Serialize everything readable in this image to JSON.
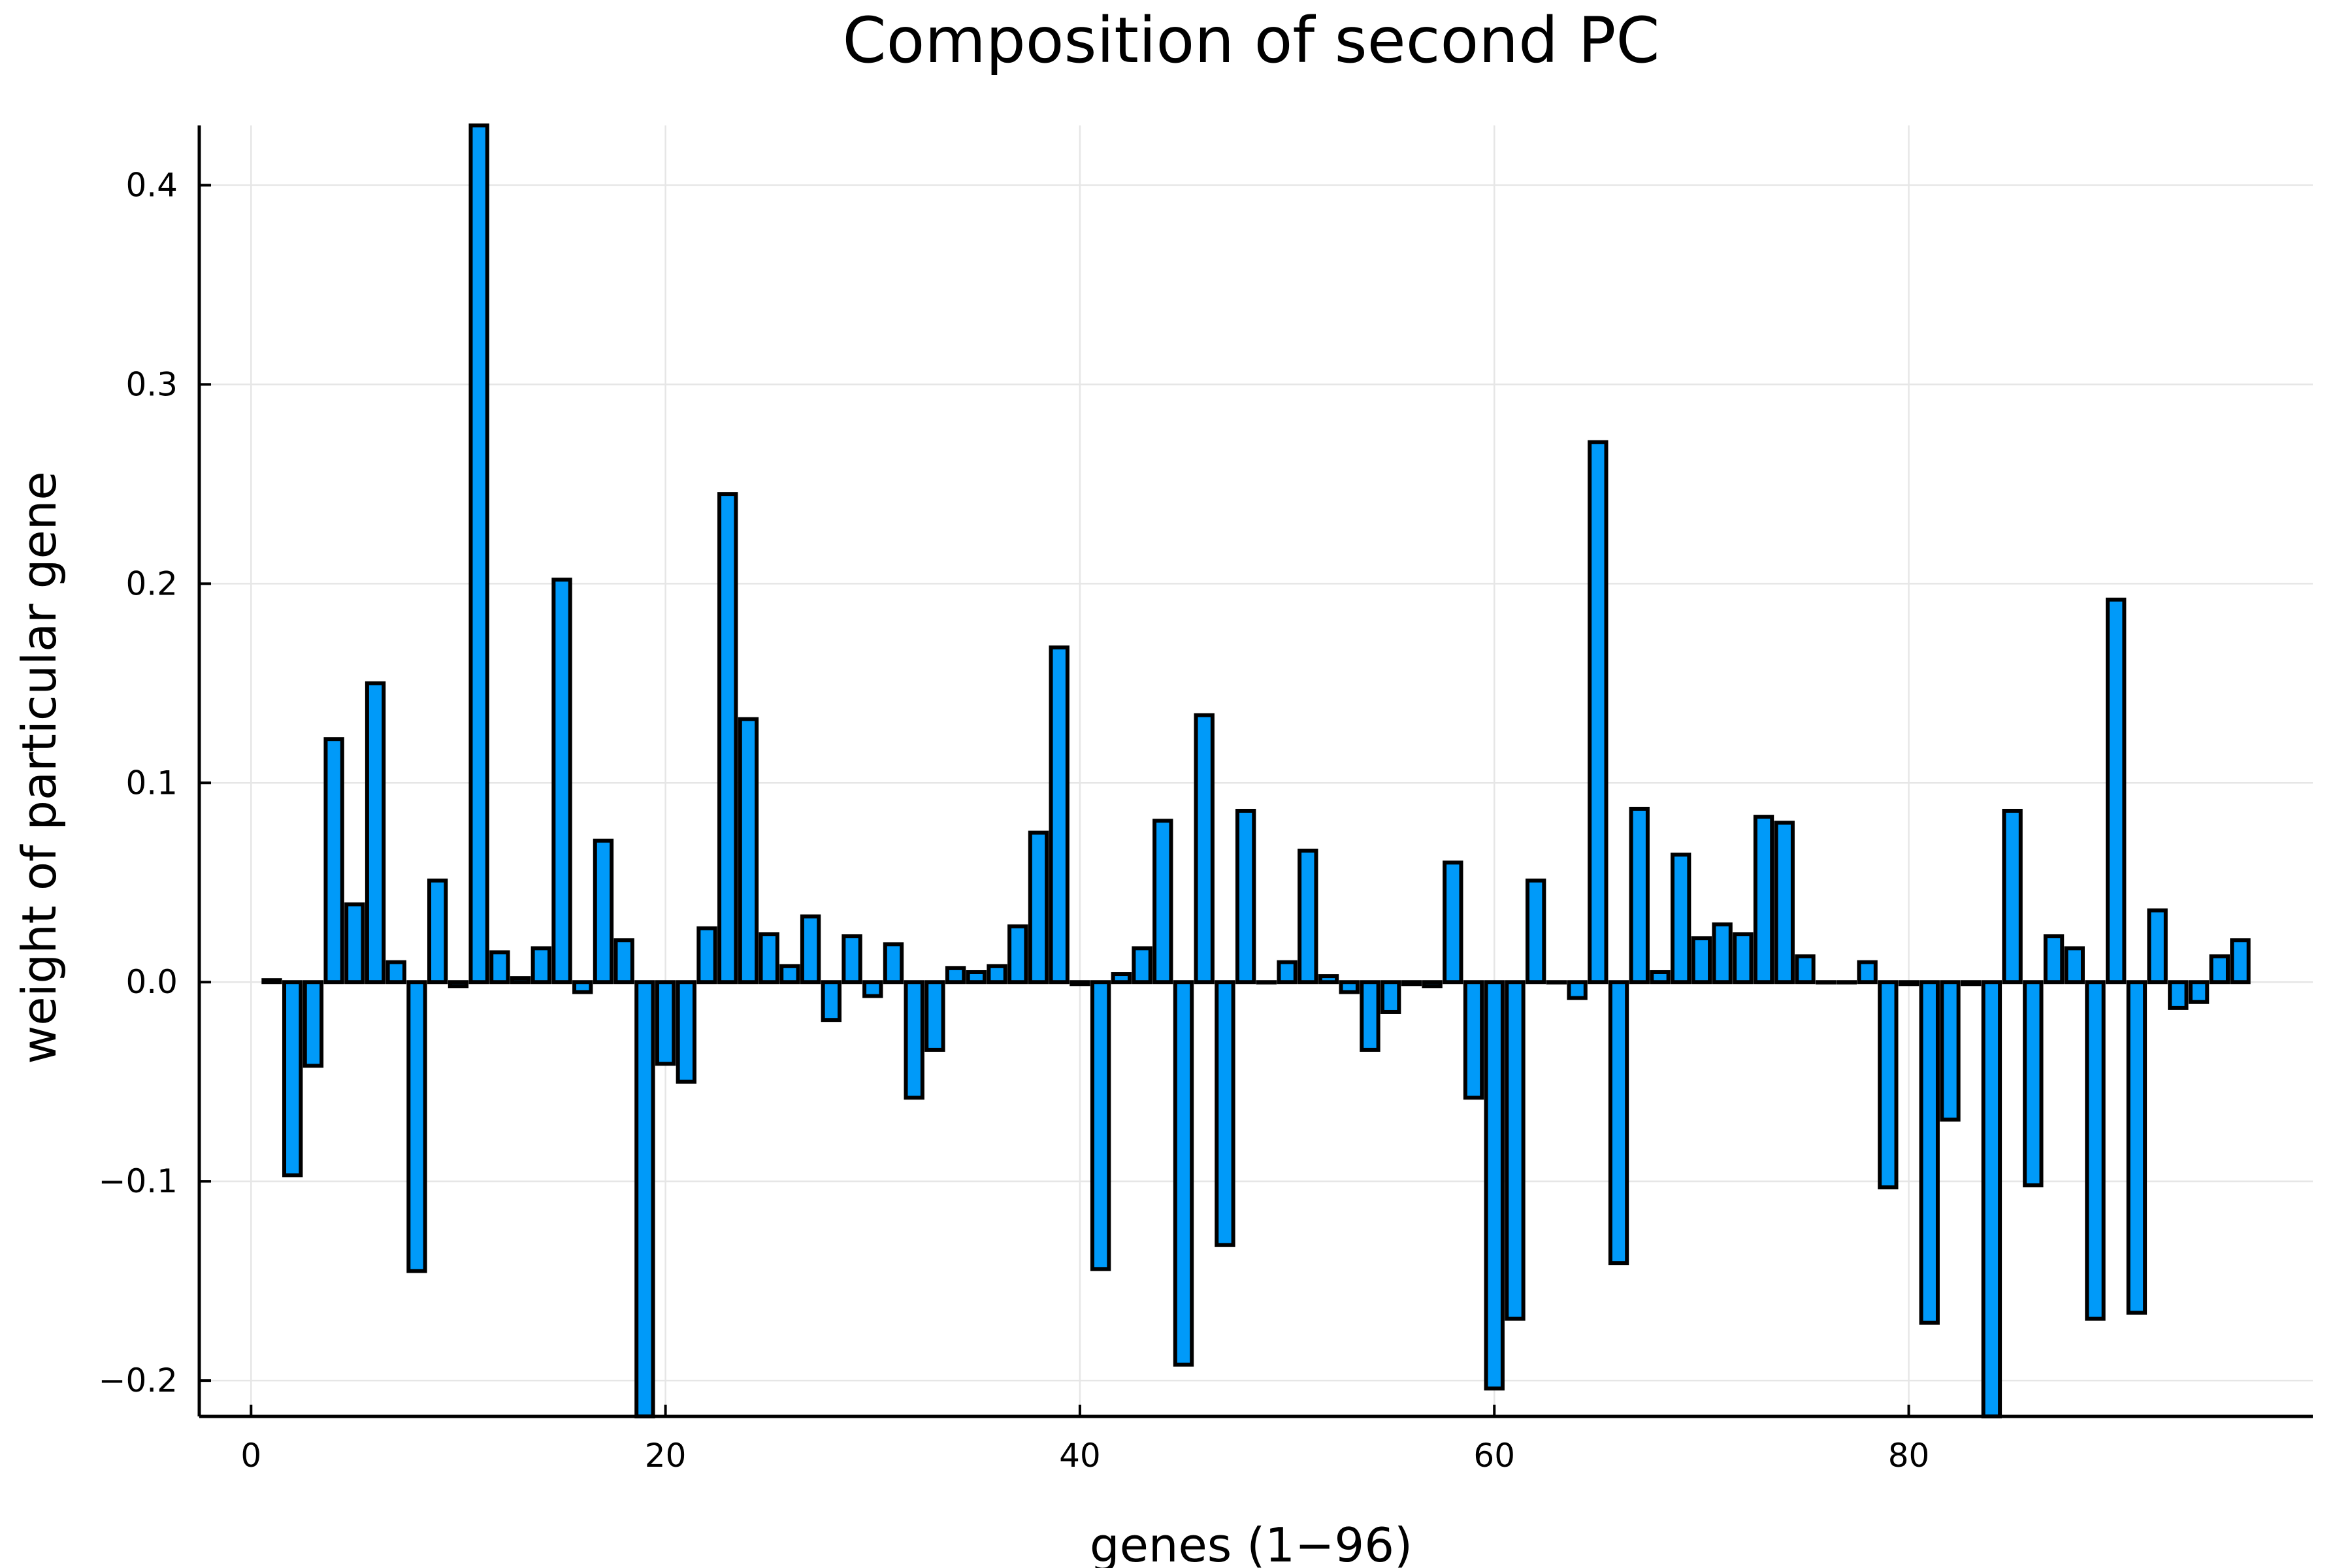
{
  "chart_data": {
    "type": "bar",
    "title": "Composition of second PC",
    "xlabel": "genes (1−96)",
    "ylabel": "weight of particular gene",
    "xlim": [
      -2.5,
      99.5
    ],
    "ylim": [
      -0.218,
      0.43
    ],
    "xticks": [
      0,
      20,
      40,
      60,
      80
    ],
    "xtick_labels": [
      "0",
      "20",
      "40",
      "60",
      "80"
    ],
    "yticks": [
      -0.2,
      -0.1,
      0.0,
      0.1,
      0.2,
      0.3,
      0.4
    ],
    "ytick_labels": [
      "−0.2",
      "−0.1",
      "0.0",
      "0.1",
      "0.2",
      "0.3",
      "0.4"
    ],
    "grid": true,
    "legend": "none",
    "bar_color": "#009AF9",
    "x": [
      1,
      2,
      3,
      4,
      5,
      6,
      7,
      8,
      9,
      10,
      11,
      12,
      13,
      14,
      15,
      16,
      17,
      18,
      19,
      20,
      21,
      22,
      23,
      24,
      25,
      26,
      27,
      28,
      29,
      30,
      31,
      32,
      33,
      34,
      35,
      36,
      37,
      38,
      39,
      40,
      41,
      42,
      43,
      44,
      45,
      46,
      47,
      48,
      49,
      50,
      51,
      52,
      53,
      54,
      55,
      56,
      57,
      58,
      59,
      60,
      61,
      62,
      63,
      64,
      65,
      66,
      67,
      68,
      69,
      70,
      71,
      72,
      73,
      74,
      75,
      76,
      77,
      78,
      79,
      80,
      81,
      82,
      83,
      84,
      85,
      86,
      87,
      88,
      89,
      90,
      91,
      92,
      93,
      94,
      95,
      96
    ],
    "values": [
      0.001,
      -0.097,
      -0.042,
      0.122,
      0.039,
      0.15,
      0.01,
      -0.145,
      0.051,
      -0.002,
      0.43,
      0.015,
      0.002,
      0.017,
      0.202,
      -0.005,
      0.071,
      0.021,
      -0.218,
      -0.041,
      -0.05,
      0.027,
      0.245,
      0.132,
      0.024,
      0.008,
      0.033,
      -0.019,
      0.023,
      -0.007,
      0.019,
      -0.058,
      -0.034,
      0.007,
      0.005,
      0.008,
      0.028,
      0.075,
      0.168,
      -0.001,
      -0.144,
      0.004,
      0.017,
      0.081,
      -0.192,
      0.134,
      -0.132,
      0.086,
      0.0,
      0.01,
      0.066,
      0.003,
      -0.005,
      -0.034,
      -0.015,
      -0.001,
      -0.002,
      0.06,
      -0.058,
      -0.204,
      -0.169,
      0.051,
      0.0,
      -0.008,
      0.271,
      -0.141,
      0.087,
      0.005,
      0.064,
      0.022,
      0.029,
      0.024,
      0.083,
      0.08,
      0.013,
      0.0,
      0.0,
      0.01,
      -0.103,
      -0.001,
      -0.171,
      -0.069,
      -0.001,
      -0.218,
      0.086,
      -0.102,
      0.023,
      0.017,
      -0.169,
      0.192,
      -0.166,
      0.036,
      -0.013,
      -0.01,
      0.013,
      0.021
    ]
  }
}
